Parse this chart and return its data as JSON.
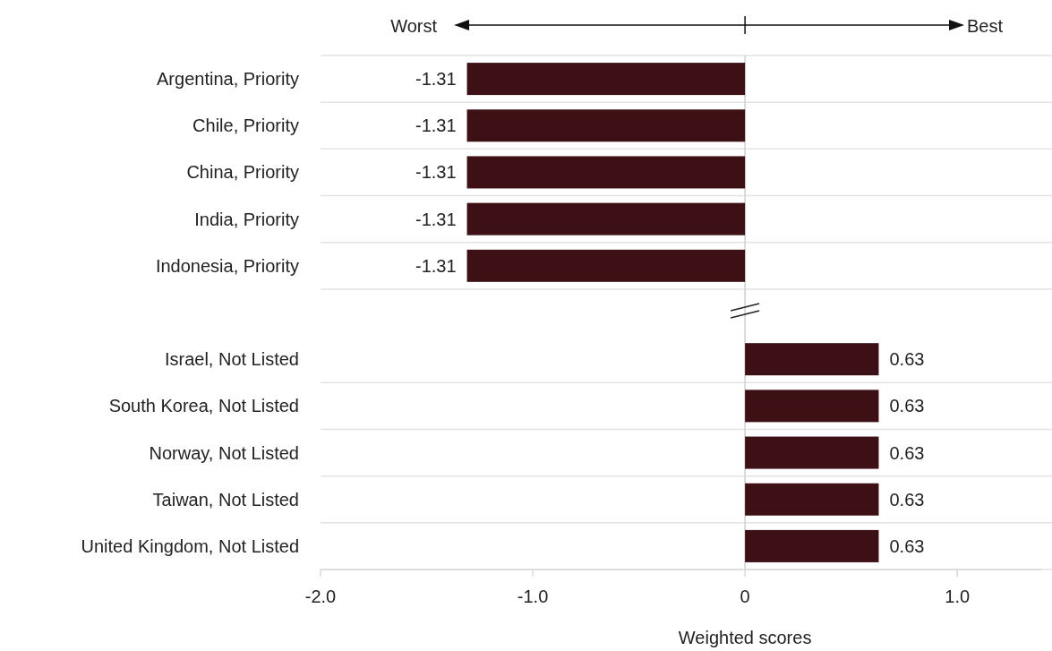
{
  "chart_data": {
    "type": "bar",
    "orientation": "horizontal",
    "categories": [
      "Argentina, Priority",
      "Chile, Priority",
      "China, Priority",
      "India, Priority",
      "Indonesia, Priority",
      null,
      "Israel, Not Listed",
      "South Korea, Not Listed",
      "Norway, Not Listed",
      "Taiwan, Not Listed",
      "United Kingdom, Not Listed"
    ],
    "values": [
      -1.31,
      -1.31,
      -1.31,
      -1.31,
      -1.31,
      null,
      0.63,
      0.63,
      0.63,
      0.63,
      0.63
    ],
    "color": "#3d1016",
    "xlim": [
      -2,
      1.4
    ],
    "xticks": [
      {
        "value": -2,
        "label": "-2.0"
      },
      {
        "value": -1,
        "label": "-1.0"
      },
      {
        "value": 0,
        "label": "0"
      },
      {
        "value": 1,
        "label": "1.0"
      }
    ],
    "xlabel": "Weighted scores",
    "annotations": [
      "Worst",
      "Best"
    ],
    "ref_lines": [
      {
        "axis": "x",
        "value": 0,
        "color": "#d9d9d9"
      }
    ],
    "grid": "y",
    "data_labels": true
  }
}
